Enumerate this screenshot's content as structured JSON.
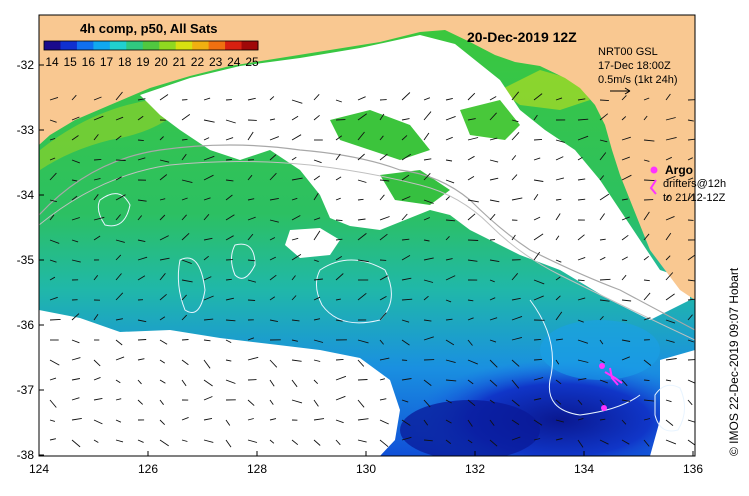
{
  "map": {
    "date_title": "20-Dec-2019 12Z",
    "credit": "© IMOS 22-Dec-2019 09:07 Hobart",
    "colorbar": {
      "title": "4h comp, p50, All Sats",
      "ticks": [
        "14",
        "15",
        "16",
        "17",
        "18",
        "19",
        "20",
        "21",
        "22",
        "23",
        "24",
        "25"
      ],
      "colors": [
        "#1a0a8c",
        "#1030d0",
        "#1070f0",
        "#10a8f0",
        "#20d0d0",
        "#30c880",
        "#50c840",
        "#90d820",
        "#d8e010",
        "#f0b010",
        "#f07010",
        "#d82010",
        "#a00808"
      ]
    },
    "current_info": {
      "source": "NRT00 GSL",
      "date": "17-Dec 18:00Z",
      "scale": "0.5m/s (1kt 24h)"
    },
    "legend": {
      "argo_label": "Argo",
      "drifters_line1": "drifters@12h",
      "drifters_line2": "to 21/12-12Z"
    },
    "axes": {
      "y_labels": [
        "-32",
        "-33",
        "-34",
        "-35",
        "-36",
        "-37",
        "-38"
      ],
      "x_labels": [
        "124",
        "126",
        "128",
        "130",
        "132",
        "134",
        "136"
      ]
    },
    "colors": {
      "land": "#f9c891",
      "ocean_green": "#34c43c",
      "cloud": "#ffffff",
      "argo": "#ff33ff"
    }
  }
}
